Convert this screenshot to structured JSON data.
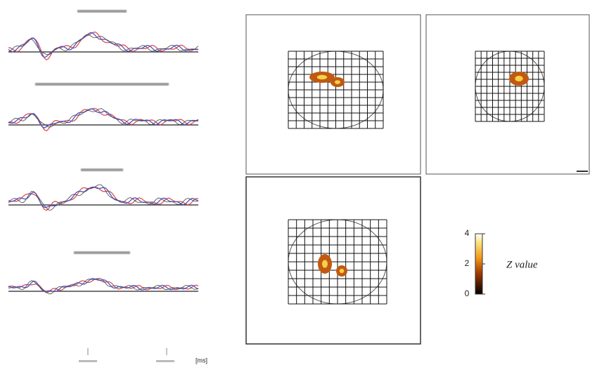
{
  "colorbar": {
    "label": "Z value",
    "ticks": [
      4,
      2,
      0
    ]
  },
  "time_axis": {
    "unit": "[ms]"
  }
}
